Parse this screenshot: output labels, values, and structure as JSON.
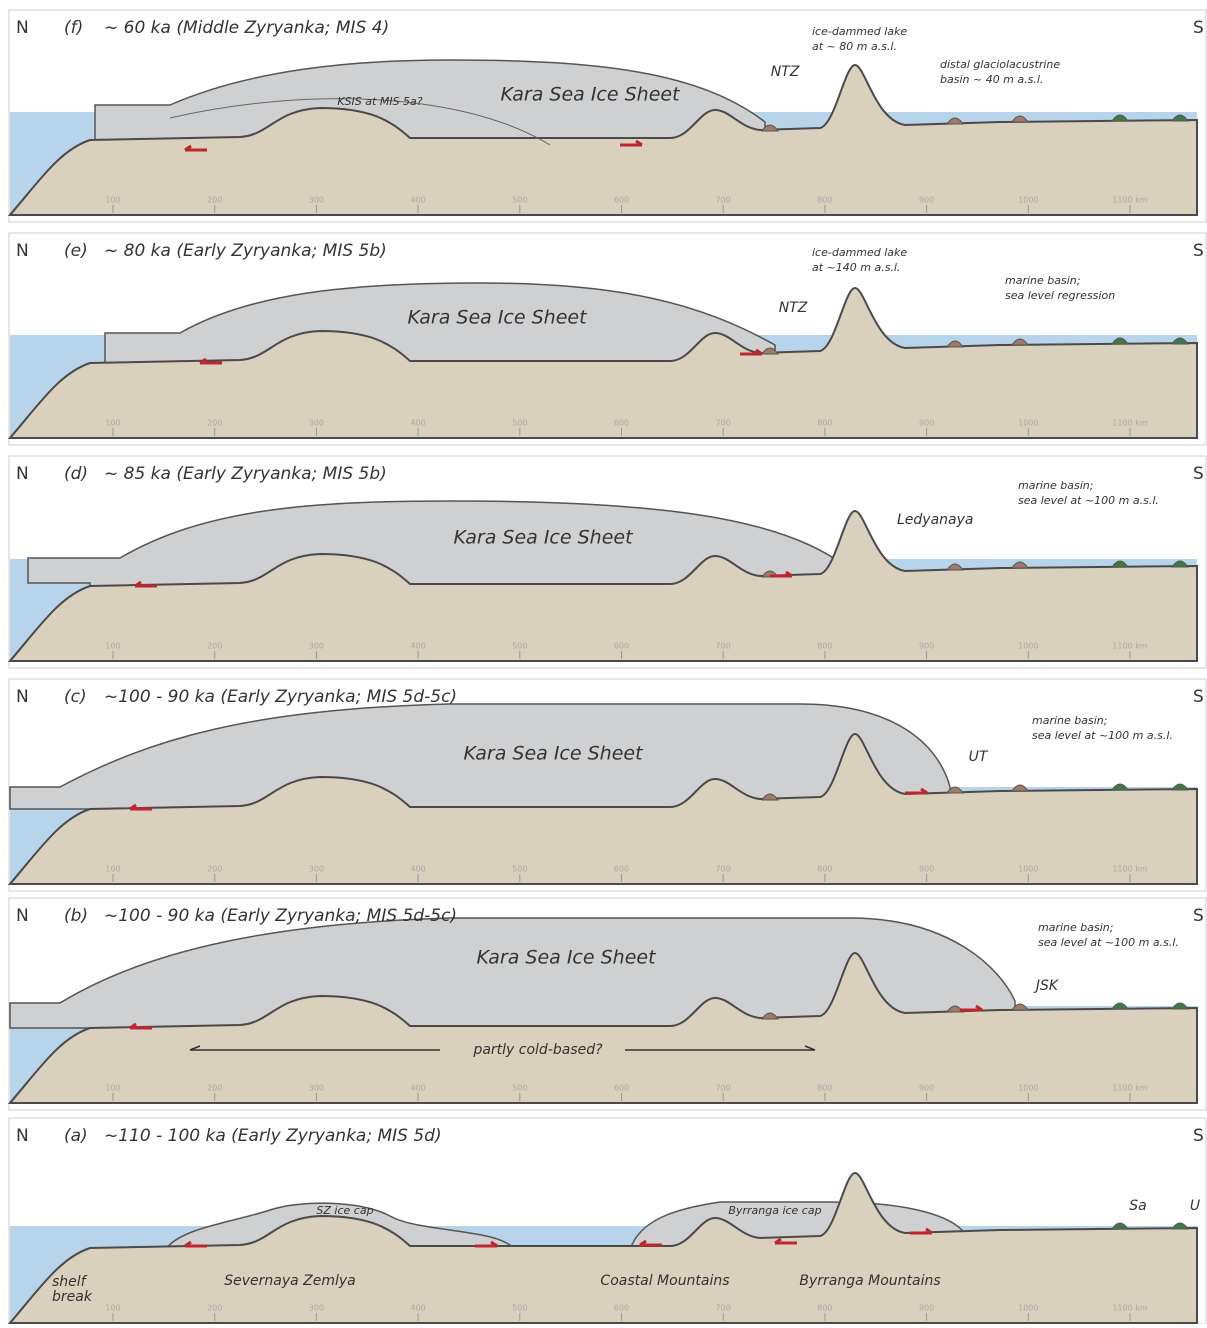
{
  "axis_ticks": [
    "100",
    "200",
    "300",
    "400",
    "500",
    "600",
    "700",
    "800",
    "900",
    "1000",
    "1100 km"
  ],
  "panels": [
    {
      "north": "N",
      "label": "(f)",
      "title": "~ 60 ka (Middle Zyryanka; MIS 4)",
      "south": "S",
      "annotations": [
        [
          "Kara Sea Ice Sheet"
        ],
        [
          "KSIS at MIS 5a?"
        ],
        [
          "NTZ"
        ],
        [
          "ice-dammed lake",
          "at ~ 80 m a.s.l."
        ],
        [
          "distal glaciolacustrine",
          "basin ~ 40 m a.s.l."
        ]
      ]
    },
    {
      "north": "N",
      "label": "(e)",
      "title": "~ 80 ka (Early Zyryanka; MIS 5b)",
      "south": "S",
      "annotations": [
        [
          "Kara Sea Ice Sheet"
        ],
        [
          "NTZ"
        ],
        [
          "ice-dammed lake",
          "at ~140 m a.s.l."
        ],
        [
          "marine basin;",
          "sea level regression"
        ]
      ]
    },
    {
      "north": "N",
      "label": "(d)",
      "title": "~ 85 ka (Early Zyryanka; MIS 5b)",
      "south": "S",
      "annotations": [
        [
          "Kara Sea Ice Sheet"
        ],
        [
          "Ledyanaya"
        ],
        [
          "marine basin;",
          "sea level at ~100 m a.s.l."
        ]
      ]
    },
    {
      "north": "N",
      "label": "(c)",
      "title": "~100 - 90 ka (Early Zyryanka; MIS 5d-5c)",
      "south": "S",
      "annotations": [
        [
          "Kara Sea Ice Sheet"
        ],
        [
          "UT"
        ],
        [
          "marine basin;",
          "sea level at ~100 m a.s.l."
        ]
      ]
    },
    {
      "north": "N",
      "label": "(b)",
      "title": "~100 - 90 ka (Early Zyryanka; MIS 5d-5c)",
      "south": "S",
      "annotations": [
        [
          "Kara Sea Ice Sheet"
        ],
        [
          "JSK"
        ],
        [
          "marine basin;",
          "sea level at ~100 m a.s.l."
        ],
        [
          "partly cold-based?"
        ]
      ]
    },
    {
      "north": "N",
      "label": "(a)",
      "title": "~110 - 100 ka (Early Zyryanka; MIS 5d)",
      "south": "S",
      "annotations": [
        [
          "SZ ice cap"
        ],
        [
          "Byrranga ice cap"
        ],
        [
          "Severnaya Zemlya"
        ],
        [
          "Coastal Mountains"
        ],
        [
          "Byrranga Mountains"
        ],
        [
          "shelf",
          "break"
        ],
        [
          "Sa"
        ],
        [
          "U"
        ]
      ]
    }
  ]
}
